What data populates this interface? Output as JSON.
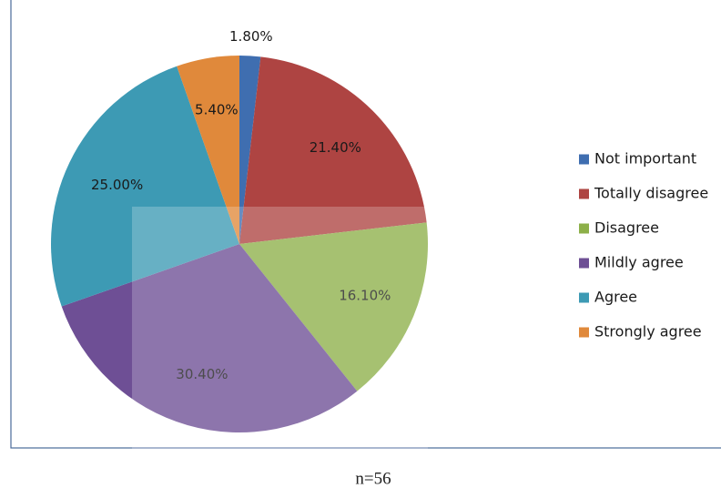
{
  "chart_data": {
    "type": "pie",
    "categories": [
      "Not important",
      "Totally disagree",
      "Disagree",
      "Mildly agree",
      "Agree",
      "Strongly agree"
    ],
    "values": [
      1.8,
      21.4,
      16.1,
      30.4,
      25.0,
      5.4
    ],
    "value_labels": [
      "1.80%",
      "21.40%",
      "16.10%",
      "30.40%",
      "25.00%",
      "5.40%"
    ],
    "colors": [
      "#3f6eb0",
      "#ae4442",
      "#8db049",
      "#6e4f95",
      "#3d9ab4",
      "#e0893b"
    ],
    "legend": "right",
    "note": "n=56"
  }
}
